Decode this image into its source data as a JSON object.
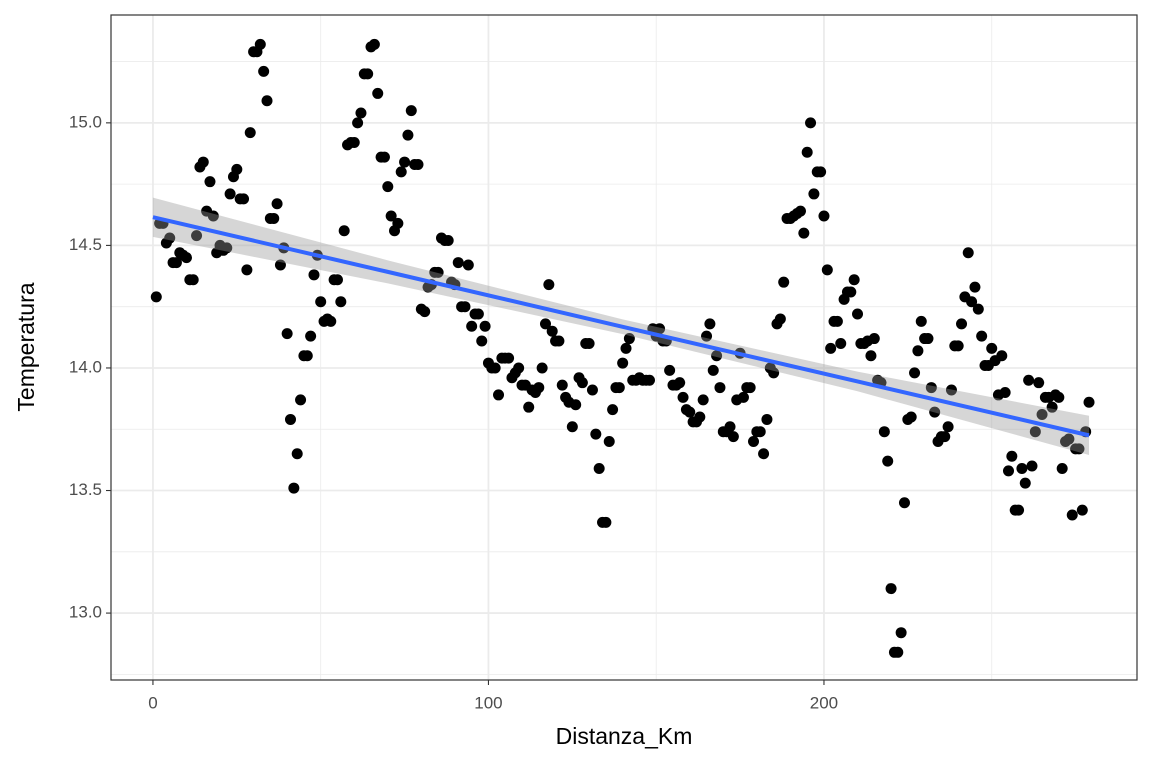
{
  "chart_data": {
    "type": "scatter",
    "x_label": "Distanza_Km",
    "y_label": "Temperatura",
    "xlim": [
      -12.5,
      293.3
    ],
    "ylim": [
      12.727,
      15.44
    ],
    "xticks": [
      0,
      100,
      200
    ],
    "yticks": [
      {
        "value": 13,
        "label": "13.0"
      },
      13.5,
      {
        "value": 14,
        "label": "14.0"
      },
      14.5,
      {
        "value": 15,
        "label": "15.0"
      }
    ],
    "minor_xticks": [
      50,
      150,
      250
    ],
    "minor_yticks": [
      12.75,
      13.25,
      13.75,
      14.25,
      14.75,
      15.25
    ],
    "grid": true,
    "series": [
      {
        "color": "#000000",
        "x": [
          1,
          2,
          3,
          4,
          5,
          6,
          7,
          8,
          9,
          10,
          11,
          12,
          13,
          14,
          15,
          16,
          17,
          18,
          19,
          20,
          21,
          22,
          23,
          24,
          25,
          26,
          27,
          28,
          29,
          30,
          31,
          32,
          33,
          34,
          35,
          36,
          37,
          38,
          39,
          40,
          41,
          42,
          43,
          44,
          45,
          46,
          47,
          48,
          49,
          50,
          51,
          52,
          53,
          54,
          55,
          56,
          57,
          58,
          59,
          60,
          61,
          62,
          63,
          64,
          65,
          66,
          67,
          68,
          69,
          70,
          71,
          72,
          73,
          74,
          75,
          76,
          77,
          78,
          79,
          80,
          81,
          82,
          83,
          84,
          85,
          86,
          87,
          88,
          89,
          90,
          91,
          92,
          93,
          94,
          95,
          96,
          97,
          98,
          99,
          100,
          101,
          102,
          103,
          104,
          105,
          106,
          107,
          108,
          109,
          110,
          111,
          112,
          113,
          114,
          115,
          116,
          117,
          118,
          119,
          120,
          121,
          122,
          123,
          124,
          125,
          126,
          127,
          128,
          129,
          130,
          131,
          132,
          133,
          134,
          135,
          136,
          137,
          138,
          139,
          140,
          141,
          142,
          143,
          144,
          145,
          146,
          147,
          148,
          149,
          150,
          151,
          152,
          153,
          154,
          155,
          156,
          157,
          158,
          159,
          160,
          161,
          162,
          163,
          164,
          165,
          166,
          167,
          168,
          169,
          170,
          171,
          172,
          173,
          174,
          175,
          176,
          177,
          178,
          179,
          180,
          181,
          182,
          183,
          184,
          185,
          186,
          187,
          188,
          189,
          190,
          191,
          192,
          193,
          194,
          195,
          196,
          197,
          198,
          199,
          200,
          201,
          202,
          203,
          204,
          205,
          206,
          207,
          208,
          209,
          210,
          211,
          212,
          213,
          214,
          215,
          216,
          217,
          218,
          219,
          220,
          221,
          222,
          223,
          224,
          225,
          226,
          227,
          228,
          229,
          230,
          231,
          232,
          233,
          234,
          235,
          236,
          237,
          238,
          239,
          240,
          241,
          242,
          243,
          244,
          245,
          246,
          247,
          248,
          249,
          250,
          251,
          252,
          253,
          254,
          255,
          256,
          257,
          258,
          259,
          260,
          261,
          262,
          263,
          264,
          265,
          266,
          267,
          268,
          269,
          270,
          271,
          272,
          273,
          274,
          275,
          276,
          277,
          278,
          279
        ],
        "values": [
          14.29,
          14.59,
          14.59,
          14.51,
          14.53,
          14.43,
          14.43,
          14.47,
          14.46,
          14.45,
          14.36,
          14.36,
          14.54,
          14.82,
          14.84,
          14.64,
          14.76,
          14.62,
          14.47,
          14.5,
          14.48,
          14.49,
          14.71,
          14.78,
          14.81,
          14.69,
          14.69,
          14.4,
          14.96,
          15.29,
          15.29,
          15.32,
          15.21,
          15.09,
          14.61,
          14.61,
          14.67,
          14.42,
          14.49,
          14.14,
          13.79,
          13.51,
          13.65,
          13.87,
          14.05,
          14.05,
          14.13,
          14.38,
          14.46,
          14.27,
          14.19,
          14.2,
          14.19,
          14.36,
          14.36,
          14.27,
          14.56,
          14.91,
          14.92,
          14.92,
          15.0,
          15.04,
          15.2,
          15.2,
          15.31,
          15.32,
          15.12,
          14.86,
          14.86,
          14.74,
          14.62,
          14.56,
          14.59,
          14.8,
          14.84,
          14.95,
          15.05,
          14.83,
          14.83,
          14.24,
          14.23,
          14.33,
          14.34,
          14.39,
          14.39,
          14.53,
          14.52,
          14.52,
          14.35,
          14.34,
          14.43,
          14.25,
          14.25,
          14.42,
          14.17,
          14.22,
          14.22,
          14.11,
          14.17,
          14.02,
          14.0,
          14.0,
          13.89,
          14.04,
          14.04,
          14.04,
          13.96,
          13.98,
          14.0,
          13.93,
          13.93,
          13.84,
          13.91,
          13.9,
          13.92,
          14.0,
          14.18,
          14.34,
          14.15,
          14.11,
          14.11,
          13.93,
          13.88,
          13.86,
          13.76,
          13.85,
          13.96,
          13.94,
          14.1,
          14.1,
          13.91,
          13.73,
          13.59,
          13.37,
          13.37,
          13.7,
          13.83,
          13.92,
          13.92,
          14.02,
          14.08,
          14.12,
          13.95,
          13.95,
          13.96,
          13.95,
          13.95,
          13.95,
          14.16,
          14.13,
          14.16,
          14.11,
          14.11,
          13.99,
          13.93,
          13.93,
          13.94,
          13.88,
          13.83,
          13.82,
          13.78,
          13.78,
          13.8,
          13.87,
          14.13,
          14.18,
          13.99,
          14.05,
          13.92,
          13.74,
          13.74,
          13.76,
          13.72,
          13.87,
          14.06,
          13.88,
          13.92,
          13.92,
          13.7,
          13.74,
          13.74,
          13.65,
          13.79,
          14.0,
          13.98,
          14.18,
          14.2,
          14.35,
          14.61,
          14.61,
          14.62,
          14.63,
          14.64,
          14.55,
          14.88,
          15.0,
          14.71,
          14.8,
          14.8,
          14.62,
          14.4,
          14.08,
          14.19,
          14.19,
          14.1,
          14.28,
          14.31,
          14.31,
          14.36,
          14.22,
          14.1,
          14.1,
          14.11,
          14.05,
          14.12,
          13.95,
          13.94,
          13.74,
          13.62,
          13.1,
          12.84,
          12.84,
          12.92,
          13.45,
          13.79,
          13.8,
          13.98,
          14.07,
          14.19,
          14.12,
          14.12,
          13.92,
          13.82,
          13.7,
          13.72,
          13.72,
          13.76,
          13.91,
          14.09,
          14.09,
          14.18,
          14.29,
          14.47,
          14.27,
          14.33,
          14.24,
          14.13,
          14.01,
          14.01,
          14.08,
          14.03,
          13.89,
          14.05,
          13.9,
          13.58,
          13.64,
          13.42,
          13.42,
          13.59,
          13.53,
          13.95,
          13.6,
          13.74,
          13.94,
          13.81,
          13.88,
          13.88,
          13.84,
          13.89,
          13.88,
          13.59,
          13.7,
          13.71,
          13.4,
          13.67,
          13.67,
          13.42,
          13.74,
          13.86
        ]
      }
    ],
    "trend": {
      "color": "#3366ff",
      "band_color": "#999999",
      "x": [
        0,
        70,
        140,
        210,
        279
      ],
      "values": [
        14.615,
        14.392,
        14.168,
        13.945,
        13.725
      ],
      "lower": [
        14.535,
        14.345,
        14.138,
        13.905,
        13.645
      ],
      "upper": [
        14.695,
        14.439,
        14.198,
        13.985,
        13.805
      ]
    }
  }
}
